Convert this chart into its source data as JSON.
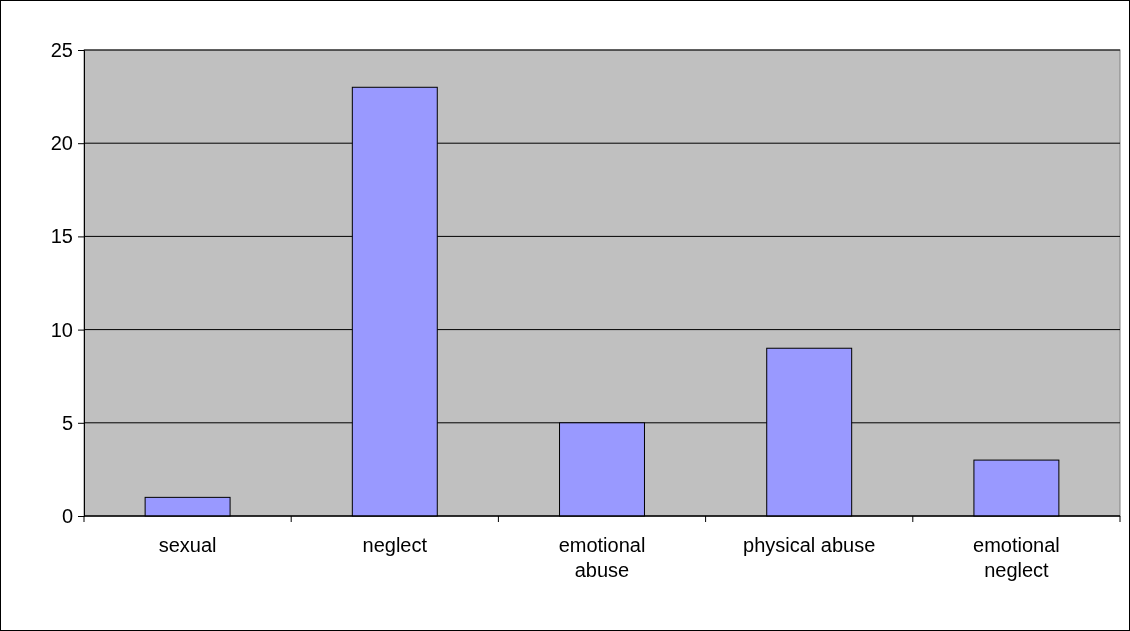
{
  "chart_data": {
    "type": "bar",
    "categories": [
      "sexual",
      "neglect",
      "emotional abuse",
      "physical abuse",
      "emotional neglect"
    ],
    "values": [
      1,
      23,
      5,
      9,
      3
    ],
    "color": "#9999ff",
    "ylim": [
      0,
      25
    ],
    "yticks": [
      0,
      5,
      10,
      15,
      20,
      25
    ],
    "grid": "y"
  }
}
